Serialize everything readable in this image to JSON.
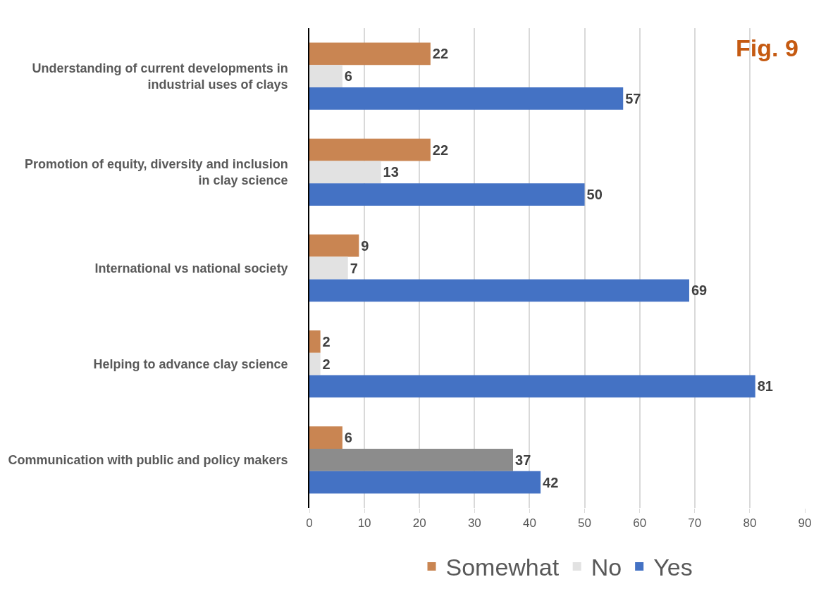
{
  "chart_data": {
    "type": "bar",
    "orientation": "horizontal",
    "categories": [
      "Understanding of current developments in industrial uses of clays",
      "Promotion of equity, diversity and inclusion in clay science",
      "International vs national society",
      "Helping to advance clay science",
      "Communication with public and policy makers"
    ],
    "series": [
      {
        "name": "Somewhat",
        "color": "#c98552",
        "values": [
          22,
          22,
          9,
          2,
          6
        ]
      },
      {
        "name": "No",
        "color": "#e2e2e2",
        "colors": [
          "#e2e2e2",
          "#e2e2e2",
          "#e2e2e2",
          "#e2e2e2",
          "#8c8c8c"
        ],
        "values": [
          6,
          13,
          7,
          2,
          37
        ]
      },
      {
        "name": "Yes",
        "color": "#4472c4",
        "values": [
          57,
          50,
          69,
          81,
          42
        ]
      }
    ],
    "xlim": [
      0,
      90
    ],
    "xticks": [
      0,
      10,
      20,
      30,
      40,
      50,
      60,
      70,
      80,
      90
    ],
    "grid": "x",
    "legend": "bottom",
    "data_labels": true,
    "annotations": [
      "Fig. 9"
    ]
  }
}
